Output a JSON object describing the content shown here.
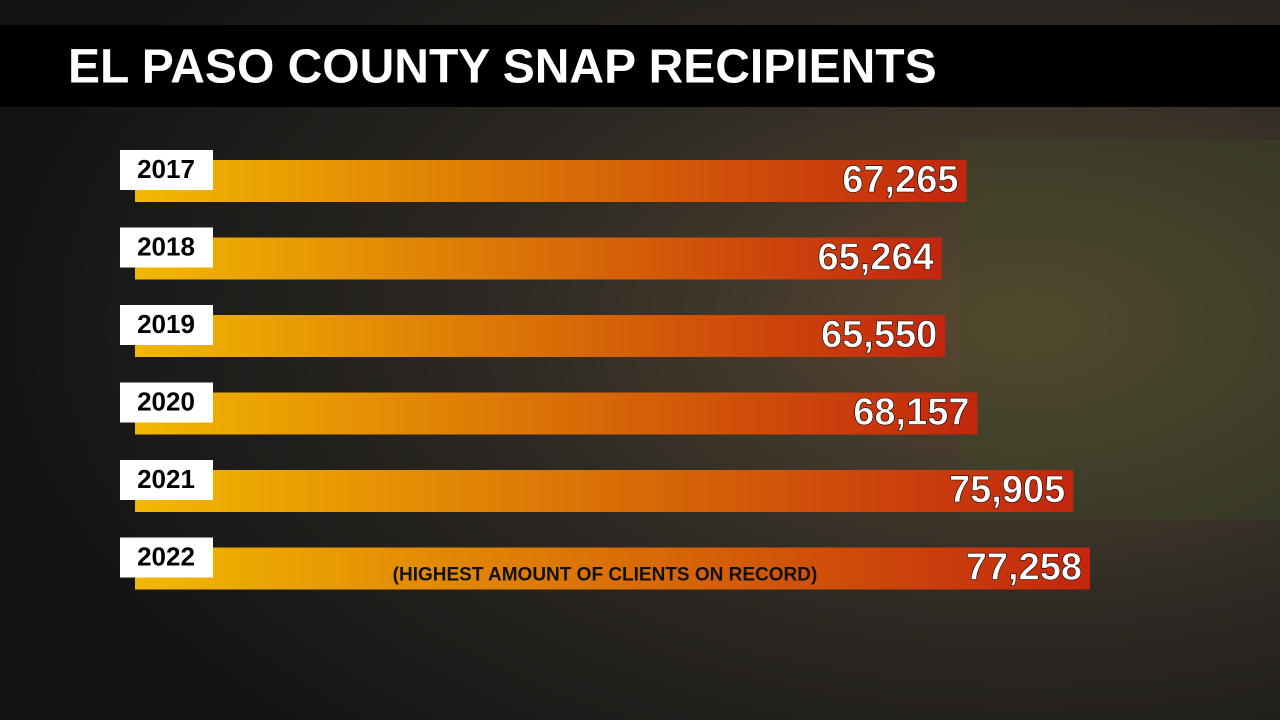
{
  "chart_data": {
    "type": "bar",
    "orientation": "horizontal",
    "title": "EL PASO COUNTY SNAP RECIPIENTS",
    "categories": [
      "2017",
      "2018",
      "2019",
      "2020",
      "2021",
      "2022"
    ],
    "values": [
      67265,
      65264,
      65550,
      68157,
      75905,
      77258
    ],
    "value_labels": [
      "67,265",
      "65,264",
      "65,550",
      "68,157",
      "75,905",
      "77,258"
    ],
    "annotation": "(HIGHEST AMOUNT OF CLIENTS ON RECORD)",
    "color_start": "#f2b800",
    "color_end": "#c2260e"
  }
}
